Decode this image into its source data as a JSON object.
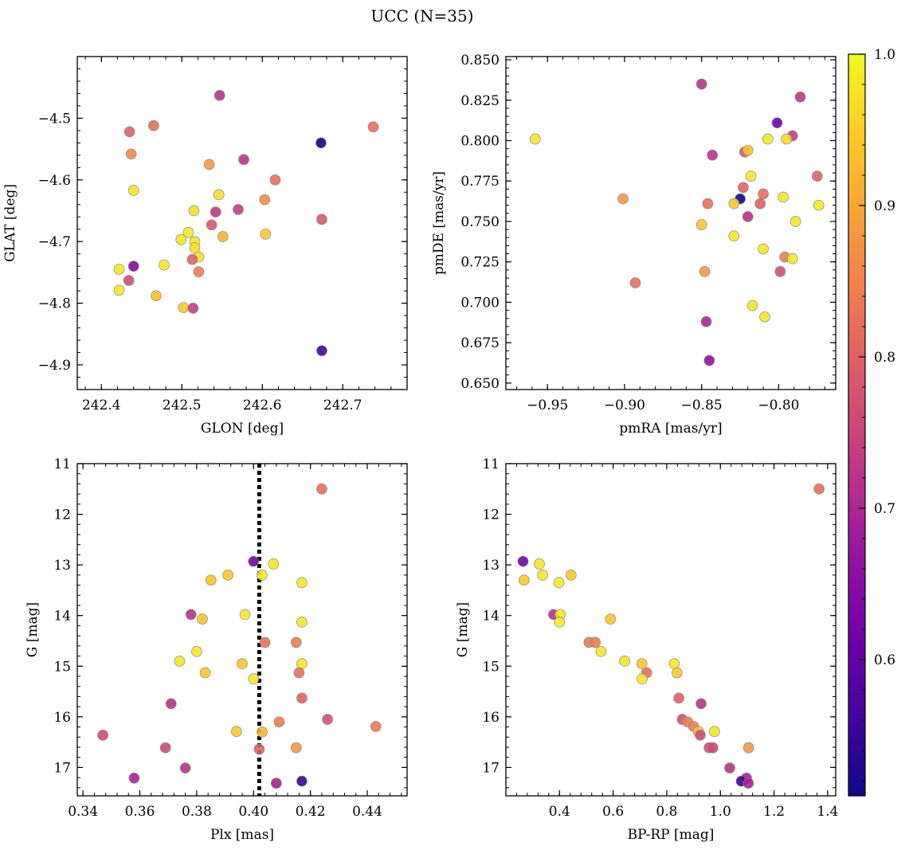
{
  "figure": {
    "title": "UCC (N=35)"
  },
  "colormap": {
    "name": "plasma",
    "vmin": 0.51,
    "vmax": 1.0,
    "ticks": [
      0.6,
      0.7,
      0.8,
      0.9,
      1.0
    ],
    "tick_labels": [
      "0.6",
      "0.7",
      "0.8",
      "0.9",
      "1.0"
    ],
    "stops": [
      "#0d0887",
      "#41049d",
      "#6a00a8",
      "#8f0da4",
      "#b12a90",
      "#cc4778",
      "#e16462",
      "#f2844b",
      "#fca636",
      "#fcce25",
      "#f0f921"
    ]
  },
  "chart_data": [
    {
      "id": "sky",
      "type": "scatter",
      "xlabel": "GLON [deg]",
      "ylabel": "GLAT [deg]",
      "xlim": [
        242.37,
        242.78
      ],
      "ylim": [
        -4.94,
        -4.4
      ],
      "y_inverted": false,
      "xticks": [
        242.4,
        242.5,
        242.6,
        242.7
      ],
      "xtick_labels": [
        "242.4",
        "242.5",
        "242.6",
        "242.7"
      ],
      "yticks": [
        -4.5,
        -4.6,
        -4.7,
        -4.8,
        -4.9
      ],
      "ytick_labels": [
        "−4.5",
        "−4.6",
        "−4.7",
        "−4.8",
        "−4.9"
      ],
      "points": [
        {
          "x": 242.547,
          "y": -4.463,
          "c": 0.72
        },
        {
          "x": 242.435,
          "y": -4.522,
          "c": 0.8
        },
        {
          "x": 242.465,
          "y": -4.512,
          "c": 0.82
        },
        {
          "x": 242.437,
          "y": -4.558,
          "c": 0.86
        },
        {
          "x": 242.673,
          "y": -4.54,
          "c": 0.51
        },
        {
          "x": 242.738,
          "y": -4.514,
          "c": 0.82
        },
        {
          "x": 242.534,
          "y": -4.575,
          "c": 0.88
        },
        {
          "x": 242.577,
          "y": -4.567,
          "c": 0.72
        },
        {
          "x": 242.44,
          "y": -4.617,
          "c": 0.98
        },
        {
          "x": 242.616,
          "y": -4.6,
          "c": 0.82
        },
        {
          "x": 242.546,
          "y": -4.624,
          "c": 0.97
        },
        {
          "x": 242.603,
          "y": -4.632,
          "c": 0.86
        },
        {
          "x": 242.515,
          "y": -4.65,
          "c": 0.97
        },
        {
          "x": 242.542,
          "y": -4.652,
          "c": 0.73
        },
        {
          "x": 242.57,
          "y": -4.648,
          "c": 0.74
        },
        {
          "x": 242.674,
          "y": -4.664,
          "c": 0.78
        },
        {
          "x": 242.537,
          "y": -4.673,
          "c": 0.78
        },
        {
          "x": 242.508,
          "y": -4.685,
          "c": 0.98
        },
        {
          "x": 242.551,
          "y": -4.692,
          "c": 0.92
        },
        {
          "x": 242.604,
          "y": -4.688,
          "c": 0.94
        },
        {
          "x": 242.499,
          "y": -4.697,
          "c": 0.98
        },
        {
          "x": 242.516,
          "y": -4.7,
          "c": 0.98
        },
        {
          "x": 242.516,
          "y": -4.71,
          "c": 0.97
        },
        {
          "x": 242.521,
          "y": -4.725,
          "c": 0.97
        },
        {
          "x": 242.513,
          "y": -4.729,
          "c": 0.8
        },
        {
          "x": 242.422,
          "y": -4.745,
          "c": 0.98
        },
        {
          "x": 242.44,
          "y": -4.74,
          "c": 0.64
        },
        {
          "x": 242.478,
          "y": -4.738,
          "c": 0.98
        },
        {
          "x": 242.521,
          "y": -4.749,
          "c": 0.84
        },
        {
          "x": 242.434,
          "y": -4.763,
          "c": 0.77
        },
        {
          "x": 242.422,
          "y": -4.779,
          "c": 0.98
        },
        {
          "x": 242.468,
          "y": -4.788,
          "c": 0.93
        },
        {
          "x": 242.502,
          "y": -4.807,
          "c": 0.94
        },
        {
          "x": 242.514,
          "y": -4.808,
          "c": 0.74
        },
        {
          "x": 242.674,
          "y": -4.877,
          "c": 0.56
        }
      ]
    },
    {
      "id": "pm",
      "type": "scatter",
      "xlabel": "pmRA [mas/yr]",
      "ylabel": "pmDE [mas/yr]",
      "xlim": [
        -0.977,
        -0.763
      ],
      "ylim": [
        0.646,
        0.852
      ],
      "y_inverted": false,
      "xticks": [
        -0.95,
        -0.9,
        -0.85,
        -0.8
      ],
      "xtick_labels": [
        "−0.95",
        "−0.90",
        "−0.85",
        "−0.80"
      ],
      "yticks": [
        0.65,
        0.675,
        0.7,
        0.725,
        0.75,
        0.775,
        0.8,
        0.825,
        0.85
      ],
      "ytick_labels": [
        "0.650",
        "0.675",
        "0.700",
        "0.725",
        "0.750",
        "0.775",
        "0.800",
        "0.825",
        "0.850"
      ],
      "points": [
        {
          "x": -0.85,
          "y": 0.835,
          "c": 0.72
        },
        {
          "x": -0.786,
          "y": 0.827,
          "c": 0.73
        },
        {
          "x": -0.801,
          "y": 0.811,
          "c": 0.62
        },
        {
          "x": -0.791,
          "y": 0.803,
          "c": 0.74
        },
        {
          "x": -0.958,
          "y": 0.801,
          "c": 0.98
        },
        {
          "x": -0.807,
          "y": 0.801,
          "c": 0.98
        },
        {
          "x": -0.795,
          "y": 0.801,
          "c": 0.97
        },
        {
          "x": -0.822,
          "y": 0.793,
          "c": 0.78
        },
        {
          "x": -0.82,
          "y": 0.794,
          "c": 0.94
        },
        {
          "x": -0.843,
          "y": 0.791,
          "c": 0.72
        },
        {
          "x": -0.818,
          "y": 0.778,
          "c": 0.98
        },
        {
          "x": -0.775,
          "y": 0.778,
          "c": 0.8
        },
        {
          "x": -0.823,
          "y": 0.771,
          "c": 0.8
        },
        {
          "x": -0.81,
          "y": 0.767,
          "c": 0.82
        },
        {
          "x": -0.797,
          "y": 0.765,
          "c": 0.98
        },
        {
          "x": -0.901,
          "y": 0.764,
          "c": 0.88
        },
        {
          "x": -0.825,
          "y": 0.764,
          "c": 0.51
        },
        {
          "x": -0.846,
          "y": 0.761,
          "c": 0.82
        },
        {
          "x": -0.829,
          "y": 0.761,
          "c": 0.94
        },
        {
          "x": -0.812,
          "y": 0.761,
          "c": 0.8
        },
        {
          "x": -0.774,
          "y": 0.76,
          "c": 0.98
        },
        {
          "x": -0.82,
          "y": 0.753,
          "c": 0.72
        },
        {
          "x": -0.789,
          "y": 0.75,
          "c": 0.98
        },
        {
          "x": -0.85,
          "y": 0.748,
          "c": 0.94
        },
        {
          "x": -0.829,
          "y": 0.741,
          "c": 0.98
        },
        {
          "x": -0.81,
          "y": 0.733,
          "c": 0.98
        },
        {
          "x": -0.796,
          "y": 0.728,
          "c": 0.84
        },
        {
          "x": -0.791,
          "y": 0.727,
          "c": 0.98
        },
        {
          "x": -0.848,
          "y": 0.719,
          "c": 0.88
        },
        {
          "x": -0.799,
          "y": 0.719,
          "c": 0.77
        },
        {
          "x": -0.893,
          "y": 0.712,
          "c": 0.82
        },
        {
          "x": -0.817,
          "y": 0.698,
          "c": 0.98
        },
        {
          "x": -0.809,
          "y": 0.691,
          "c": 0.98
        },
        {
          "x": -0.847,
          "y": 0.688,
          "c": 0.7
        },
        {
          "x": -0.845,
          "y": 0.664,
          "c": 0.66
        }
      ]
    },
    {
      "id": "plx",
      "type": "scatter",
      "xlabel": "Plx [mas]",
      "ylabel": "G [mag]",
      "xlim": [
        0.338,
        0.454
      ],
      "ylim": [
        17.56,
        11.0
      ],
      "y_inverted": true,
      "xticks": [
        0.34,
        0.36,
        0.38,
        0.4,
        0.42,
        0.44
      ],
      "xtick_labels": [
        "0.34",
        "0.36",
        "0.38",
        "0.40",
        "0.42",
        "0.44"
      ],
      "yticks": [
        11,
        12,
        13,
        14,
        15,
        16,
        17
      ],
      "ytick_labels": [
        "11",
        "12",
        "13",
        "14",
        "15",
        "16",
        "17"
      ],
      "vline": {
        "x": 0.402,
        "style": "dotted"
      },
      "points": [
        {
          "x": 0.424,
          "y": 11.5,
          "c": 0.82
        },
        {
          "x": 0.4,
          "y": 12.93,
          "c": 0.62
        },
        {
          "x": 0.407,
          "y": 12.98,
          "c": 0.98
        },
        {
          "x": 0.391,
          "y": 13.2,
          "c": 0.94
        },
        {
          "x": 0.403,
          "y": 13.2,
          "c": 0.98
        },
        {
          "x": 0.385,
          "y": 13.3,
          "c": 0.94
        },
        {
          "x": 0.417,
          "y": 13.35,
          "c": 0.98
        },
        {
          "x": 0.378,
          "y": 13.98,
          "c": 0.72
        },
        {
          "x": 0.397,
          "y": 13.98,
          "c": 0.98
        },
        {
          "x": 0.382,
          "y": 14.07,
          "c": 0.94
        },
        {
          "x": 0.417,
          "y": 14.13,
          "c": 0.98
        },
        {
          "x": 0.404,
          "y": 14.53,
          "c": 0.82
        },
        {
          "x": 0.415,
          "y": 14.53,
          "c": 0.84
        },
        {
          "x": 0.38,
          "y": 14.71,
          "c": 0.98
        },
        {
          "x": 0.374,
          "y": 14.9,
          "c": 0.98
        },
        {
          "x": 0.396,
          "y": 14.95,
          "c": 0.94
        },
        {
          "x": 0.417,
          "y": 14.95,
          "c": 0.98
        },
        {
          "x": 0.383,
          "y": 15.13,
          "c": 0.94
        },
        {
          "x": 0.416,
          "y": 15.13,
          "c": 0.82
        },
        {
          "x": 0.4,
          "y": 15.25,
          "c": 0.98
        },
        {
          "x": 0.417,
          "y": 15.63,
          "c": 0.8
        },
        {
          "x": 0.371,
          "y": 15.74,
          "c": 0.72
        },
        {
          "x": 0.426,
          "y": 16.05,
          "c": 0.77
        },
        {
          "x": 0.409,
          "y": 16.1,
          "c": 0.84
        },
        {
          "x": 0.443,
          "y": 16.19,
          "c": 0.84
        },
        {
          "x": 0.394,
          "y": 16.29,
          "c": 0.94
        },
        {
          "x": 0.403,
          "y": 16.3,
          "c": 0.92
        },
        {
          "x": 0.347,
          "y": 16.36,
          "c": 0.76
        },
        {
          "x": 0.369,
          "y": 16.61,
          "c": 0.76
        },
        {
          "x": 0.415,
          "y": 16.61,
          "c": 0.88
        },
        {
          "x": 0.402,
          "y": 16.64,
          "c": 0.8
        },
        {
          "x": 0.376,
          "y": 17.01,
          "c": 0.72
        },
        {
          "x": 0.358,
          "y": 17.21,
          "c": 0.69
        },
        {
          "x": 0.417,
          "y": 17.27,
          "c": 0.55
        },
        {
          "x": 0.408,
          "y": 17.31,
          "c": 0.69
        }
      ]
    },
    {
      "id": "cmd",
      "type": "scatter",
      "xlabel": "BP-RP [mag]",
      "ylabel": "G [mag]",
      "xlim": [
        0.2,
        1.43
      ],
      "ylim": [
        17.56,
        11.0
      ],
      "y_inverted": true,
      "xticks": [
        0.4,
        0.6,
        0.8,
        1.0,
        1.2,
        1.4
      ],
      "xtick_labels": [
        "0.4",
        "0.6",
        "0.8",
        "1.0",
        "1.2",
        "1.4"
      ],
      "yticks": [
        11,
        12,
        13,
        14,
        15,
        16,
        17
      ],
      "ytick_labels": [
        "11",
        "12",
        "13",
        "14",
        "15",
        "16",
        "17"
      ],
      "points": [
        {
          "x": 1.368,
          "y": 11.5,
          "c": 0.82
        },
        {
          "x": 0.264,
          "y": 12.93,
          "c": 0.62
        },
        {
          "x": 0.325,
          "y": 12.98,
          "c": 0.98
        },
        {
          "x": 0.337,
          "y": 13.2,
          "c": 0.98
        },
        {
          "x": 0.443,
          "y": 13.2,
          "c": 0.94
        },
        {
          "x": 0.268,
          "y": 13.3,
          "c": 0.94
        },
        {
          "x": 0.398,
          "y": 13.35,
          "c": 0.98
        },
        {
          "x": 0.378,
          "y": 13.98,
          "c": 0.72
        },
        {
          "x": 0.403,
          "y": 13.98,
          "c": 0.98
        },
        {
          "x": 0.59,
          "y": 14.07,
          "c": 0.94
        },
        {
          "x": 0.4,
          "y": 14.13,
          "c": 0.98
        },
        {
          "x": 0.51,
          "y": 14.53,
          "c": 0.84
        },
        {
          "x": 0.533,
          "y": 14.53,
          "c": 0.84
        },
        {
          "x": 0.555,
          "y": 14.71,
          "c": 0.98
        },
        {
          "x": 0.643,
          "y": 14.9,
          "c": 0.98
        },
        {
          "x": 0.707,
          "y": 14.95,
          "c": 0.94
        },
        {
          "x": 0.828,
          "y": 14.95,
          "c": 0.98
        },
        {
          "x": 0.725,
          "y": 15.13,
          "c": 0.82
        },
        {
          "x": 0.838,
          "y": 15.13,
          "c": 0.94
        },
        {
          "x": 0.708,
          "y": 15.25,
          "c": 0.98
        },
        {
          "x": 0.845,
          "y": 15.63,
          "c": 0.8
        },
        {
          "x": 0.928,
          "y": 15.74,
          "c": 0.72
        },
        {
          "x": 0.858,
          "y": 16.05,
          "c": 0.77
        },
        {
          "x": 0.878,
          "y": 16.1,
          "c": 0.84
        },
        {
          "x": 0.9,
          "y": 16.19,
          "c": 0.84
        },
        {
          "x": 0.918,
          "y": 16.29,
          "c": 0.94
        },
        {
          "x": 0.978,
          "y": 16.29,
          "c": 0.98
        },
        {
          "x": 0.925,
          "y": 16.36,
          "c": 0.76
        },
        {
          "x": 0.958,
          "y": 16.61,
          "c": 0.77
        },
        {
          "x": 0.972,
          "y": 16.61,
          "c": 0.76
        },
        {
          "x": 1.105,
          "y": 16.61,
          "c": 0.88
        },
        {
          "x": 1.035,
          "y": 17.01,
          "c": 0.72
        },
        {
          "x": 1.097,
          "y": 17.21,
          "c": 0.69
        },
        {
          "x": 1.078,
          "y": 17.27,
          "c": 0.55
        },
        {
          "x": 1.104,
          "y": 17.31,
          "c": 0.69
        }
      ]
    }
  ]
}
